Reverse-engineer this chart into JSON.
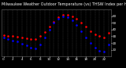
{
  "title": "Milwaukee Weather Outdoor Temperature (vs) THSW Index per Hour (Last 24 Hours)",
  "hours": [
    0,
    1,
    2,
    3,
    4,
    5,
    6,
    7,
    8,
    9,
    10,
    11,
    12,
    13,
    14,
    15,
    16,
    17,
    18,
    19,
    20,
    21,
    22,
    23
  ],
  "temp_red": [
    32,
    31,
    30,
    29,
    28,
    27,
    26,
    26,
    30,
    36,
    44,
    52,
    58,
    62,
    62,
    60,
    56,
    50,
    44,
    38,
    33,
    30,
    28,
    35
  ],
  "thsw_blue": [
    28,
    26,
    24,
    22,
    19,
    16,
    13,
    12,
    18,
    28,
    40,
    50,
    56,
    60,
    58,
    54,
    47,
    38,
    28,
    20,
    13,
    8,
    7,
    18
  ],
  "red_color": "#ff0000",
  "blue_color": "#0000ff",
  "bg_color": "#000000",
  "plot_bg": "#000000",
  "grid_color": "#555555",
  "title_bg": "#1a1a1a",
  "title_color": "#ffffff",
  "label_color": "#ffffff",
  "ylim": [
    0,
    70
  ],
  "ytick_values": [
    10,
    20,
    30,
    40,
    50,
    60
  ],
  "xtick_every": 2,
  "title_fontsize": 3.5,
  "tick_fontsize": 3.0,
  "marker_size": 1.8
}
